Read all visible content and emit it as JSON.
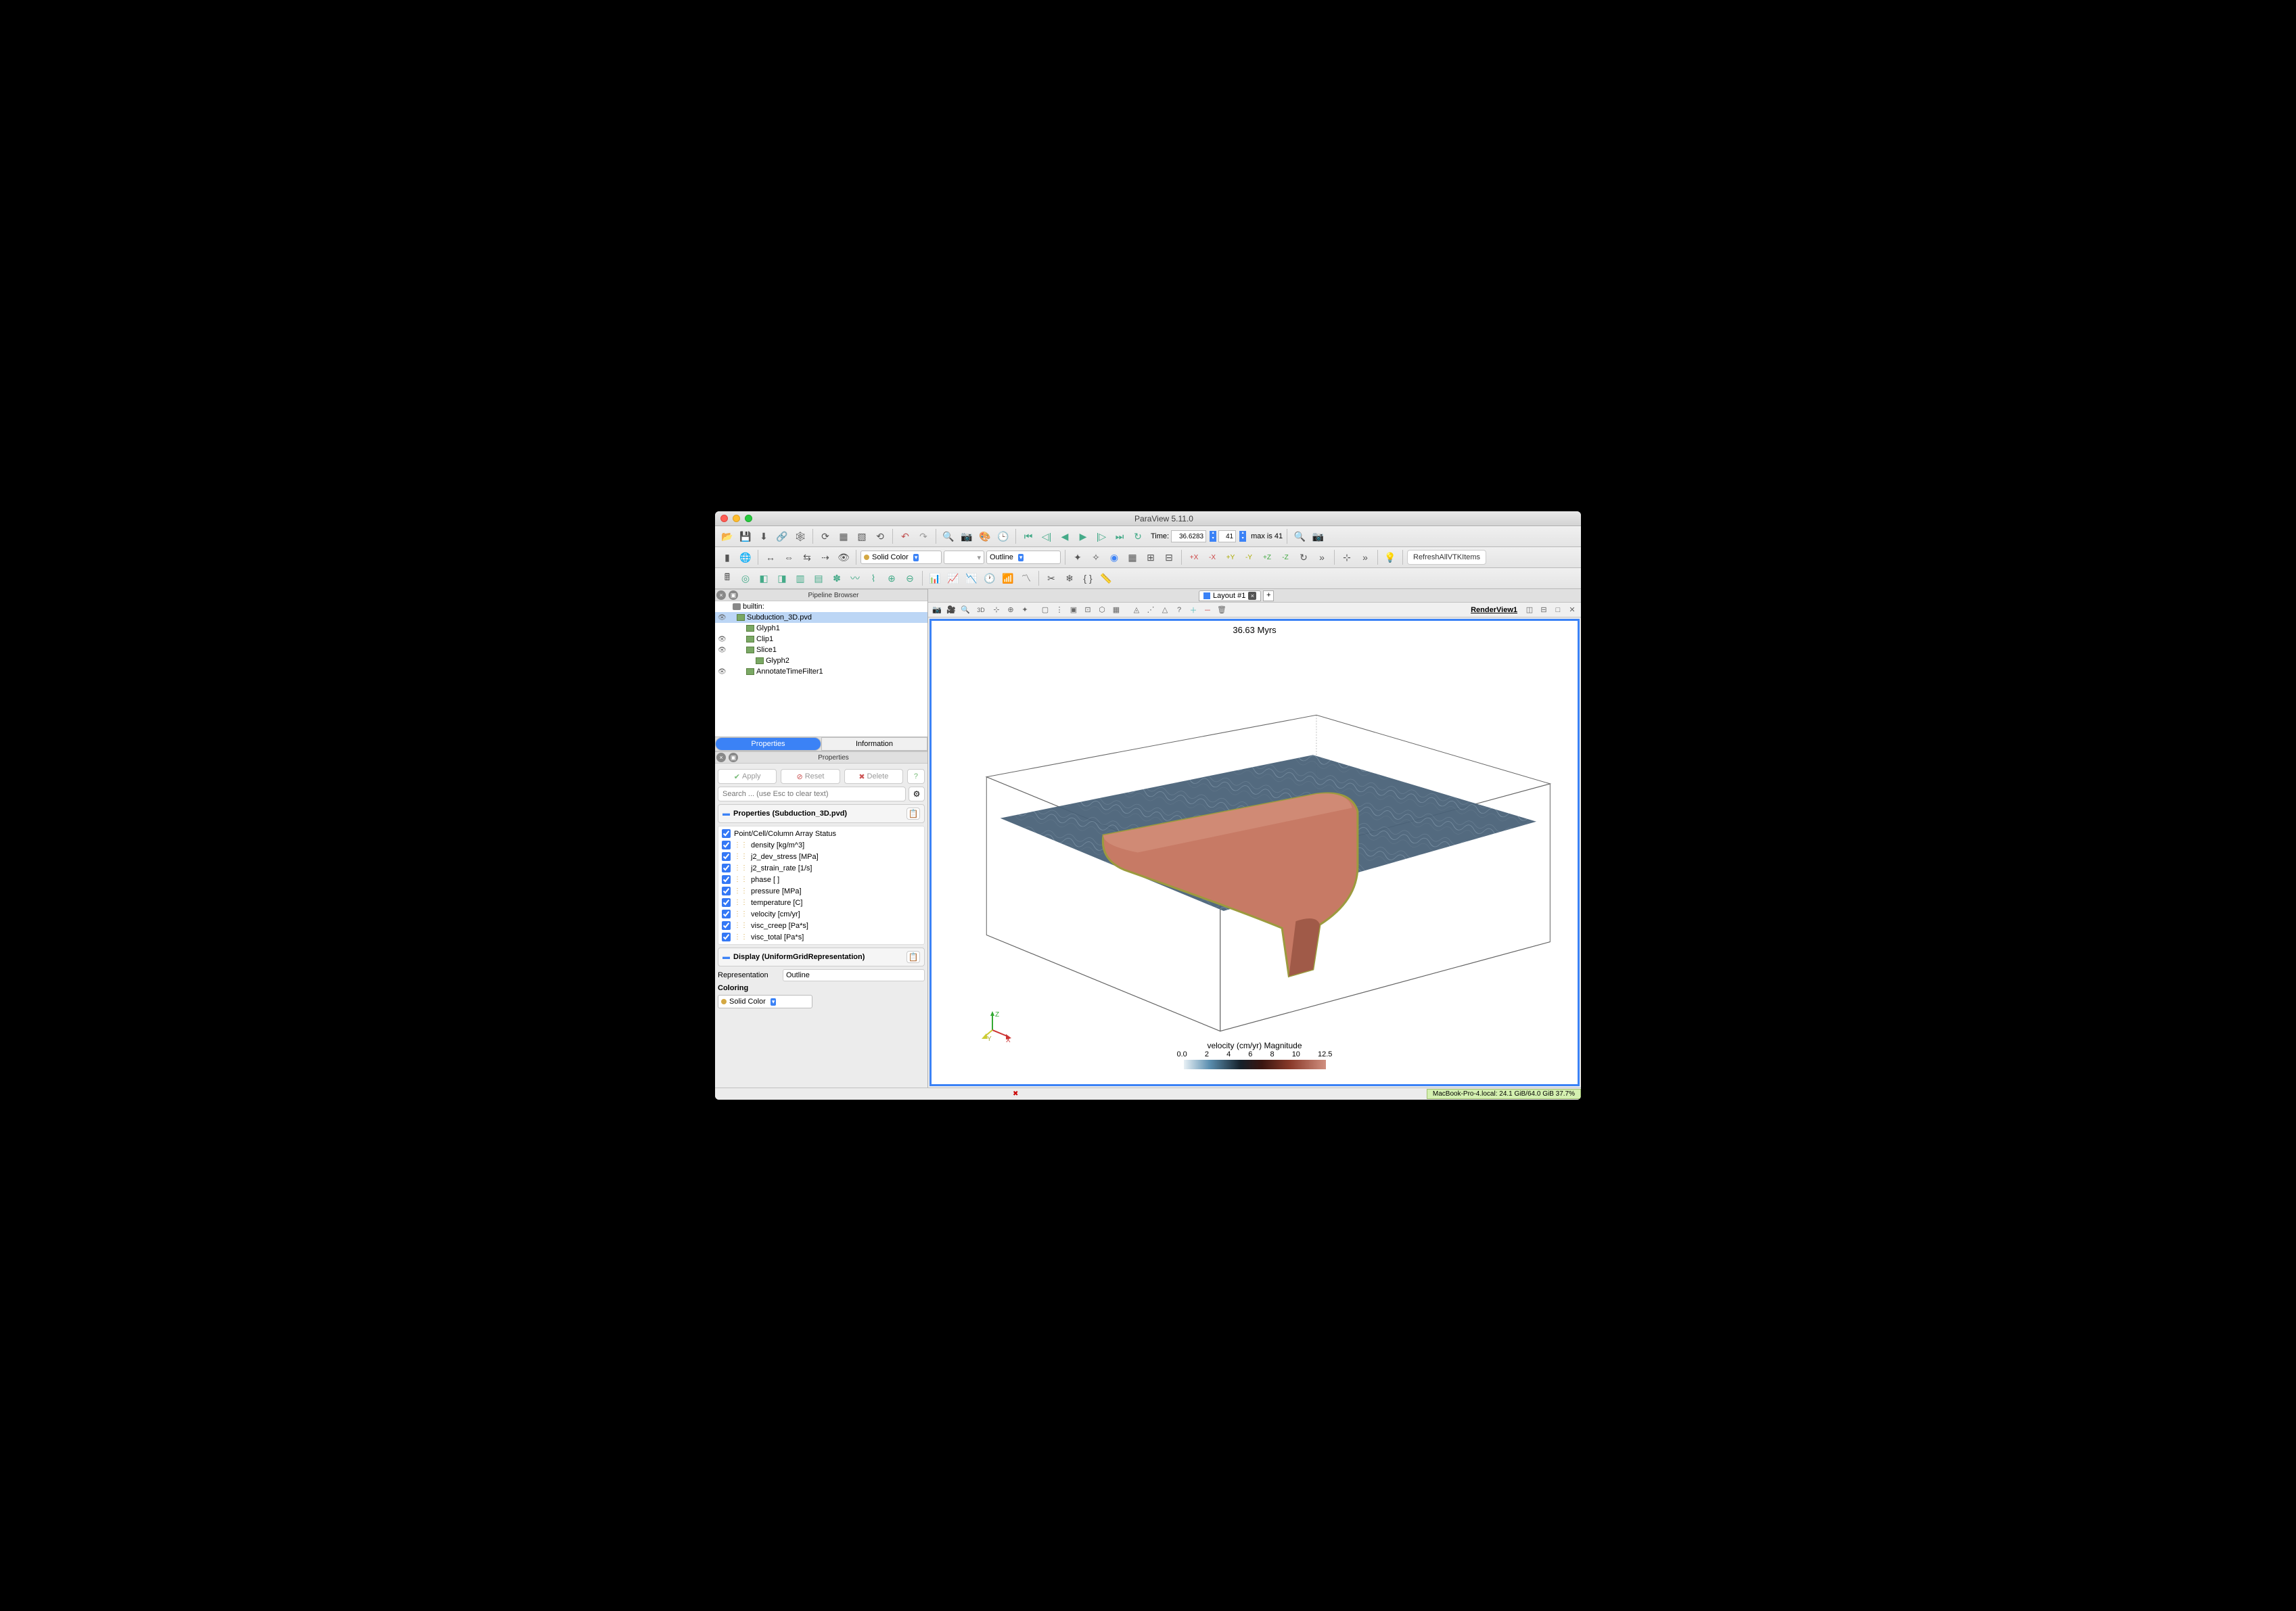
{
  "window": {
    "title": "ParaView 5.11.0"
  },
  "time_controls": {
    "label": "Time:",
    "current_time": "36.6283",
    "frame": "41",
    "max_label": "max is 41"
  },
  "toolbar2": {
    "coloring_combo": "Solid Color",
    "attribute_combo": "",
    "representation_combo": "Outline",
    "macro_button": "RefreshAllVTKItems"
  },
  "pipeline": {
    "title": "Pipeline Browser",
    "root": "builtin:",
    "items": [
      {
        "label": "Subduction_3D.pvd",
        "selected": true,
        "indent": 1,
        "visible": true
      },
      {
        "label": "Glyph1",
        "indent": 2,
        "visible": false
      },
      {
        "label": "Clip1",
        "indent": 2,
        "visible": true
      },
      {
        "label": "Slice1",
        "indent": 2,
        "visible": true
      },
      {
        "label": "Glyph2",
        "indent": 3,
        "visible": false
      },
      {
        "label": "AnnotateTimeFilter1",
        "indent": 2,
        "visible": true
      }
    ]
  },
  "prop_tabs": {
    "tab1": "Properties",
    "tab2": "Information"
  },
  "properties_panel": {
    "title": "Properties",
    "apply": "Apply",
    "reset": "Reset",
    "delete": "Delete",
    "search_placeholder": "Search ... (use Esc to clear text)",
    "section1": "Properties (Subduction_3D.pvd)",
    "array_header": "Point/Cell/Column Array Status",
    "arrays": [
      "density [kg/m^3]",
      "j2_dev_stress [MPa]",
      "j2_strain_rate [1/s]",
      "phase [ ]",
      "pressure [MPa]",
      "temperature [C]",
      "velocity [cm/yr]",
      "visc_creep [Pa*s]",
      "visc_total [Pa*s]"
    ],
    "section2": "Display (UniformGridRepresentation)",
    "repr_label": "Representation",
    "repr_value": "Outline",
    "coloring_label": "Coloring",
    "coloring_value": "Solid Color"
  },
  "layout": {
    "tab_label": "Layout #1",
    "plus": "+"
  },
  "render_view": {
    "label": "RenderView1",
    "button_3d": "3D",
    "time_annotation": "36.63 Myrs",
    "colorbar_title": "velocity (cm/yr) Magnitude",
    "colorbar_ticks": [
      "0.0",
      "2",
      "4",
      "6",
      "8",
      "10",
      "12.5"
    ],
    "colorbar_gradient": [
      "#e8f0f5",
      "#5b8fb0",
      "#15202a",
      "#3a1510",
      "#8a3a2a",
      "#d09080"
    ],
    "axes": {
      "x": "X",
      "y": "Y",
      "z": "Z"
    }
  },
  "statusbar": {
    "memory": "MacBook-Pro-4.local: 24.1 GiB/64.0 GiB 37.7%"
  },
  "scene": {
    "bbox_color": "#666666",
    "plane_fill": "#4a6278",
    "plane_stroke": "#6a7e90",
    "slab_fill": "#c77a65",
    "slab_edge": "#9c9a3e",
    "slab_shadow": "#a05a48"
  }
}
